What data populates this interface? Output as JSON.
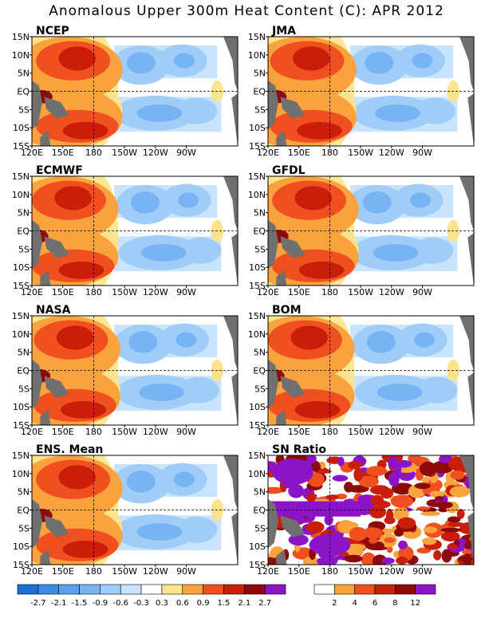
{
  "title": "Anomalous Upper 300m Heat Content (C): APR 2012",
  "lat_labels": [
    "15N",
    "10N",
    "5N",
    "EQ",
    "5S",
    "10S",
    "15S"
  ],
  "lon_labels": [
    "120E",
    "150E",
    "180",
    "150W",
    "120W",
    "90W"
  ],
  "panels": [
    {
      "name": "NCEP"
    },
    {
      "name": "JMA"
    },
    {
      "name": "ECMWF"
    },
    {
      "name": "GFDL"
    },
    {
      "name": "NASA"
    },
    {
      "name": "BOM"
    },
    {
      "name": "ENS. Mean"
    },
    {
      "name": "SN Ratio"
    }
  ],
  "anomaly_scale": {
    "labels": [
      "-2.7",
      "-2.1",
      "-1.5",
      "-0.9",
      "-0.6",
      "-0.3",
      "0.3",
      "0.6",
      "0.9",
      "1.5",
      "2.1",
      "2.7"
    ],
    "colors": [
      "#1e6fd2",
      "#3c8ce6",
      "#5aa0f0",
      "#78b4f4",
      "#a0ccf8",
      "#c8e4fc",
      "#ffffff",
      "#fce38c",
      "#f9a23e",
      "#f05020",
      "#c81e0a",
      "#8c0a0a",
      "#8c14c8"
    ]
  },
  "snr_scale": {
    "labels": [
      "2",
      "4",
      "6",
      "8",
      "12"
    ],
    "colors": [
      "#ffffff",
      "#f9a23e",
      "#f05020",
      "#c81e0a",
      "#8c0a0a",
      "#8c14c8"
    ]
  },
  "land_color": "#707070"
}
